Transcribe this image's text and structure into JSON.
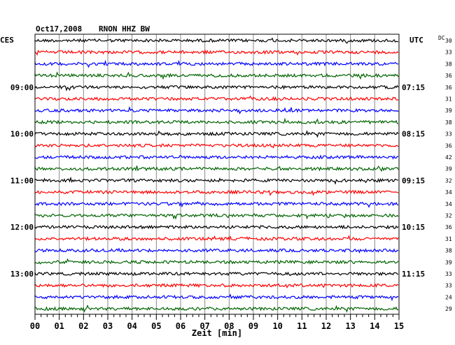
{
  "header": {
    "date": "Oct17,2008",
    "station": "RNON HHZ BW",
    "left_tz": "CES",
    "right_tz": "UTC",
    "dc_label": "DC"
  },
  "colors": {
    "trace_cycle": [
      "#000000",
      "#ff0000",
      "#0000ff",
      "#006400"
    ],
    "grid": "#888888",
    "frame": "#000000"
  },
  "chart_data": {
    "type": "line",
    "title": "Oct17,2008   RNON HHZ BW",
    "xlabel": "Zeit [min]",
    "xlim": [
      0,
      15
    ],
    "x_ticks": [
      "00",
      "01",
      "02",
      "03",
      "04",
      "05",
      "06",
      "07",
      "08",
      "09",
      "10",
      "11",
      "12",
      "13",
      "14",
      "15"
    ],
    "trace_count": 24,
    "left_time_labels": [
      {
        "row": 4,
        "text": "09:00"
      },
      {
        "row": 8,
        "text": "10:00"
      },
      {
        "row": 12,
        "text": "11:00"
      },
      {
        "row": 16,
        "text": "12:00"
      },
      {
        "row": 20,
        "text": "13:00"
      }
    ],
    "right_time_labels": [
      {
        "row": 4,
        "text": "07:15"
      },
      {
        "row": 8,
        "text": "08:15"
      },
      {
        "row": 12,
        "text": "09:15"
      },
      {
        "row": 16,
        "text": "10:15"
      },
      {
        "row": 20,
        "text": "11:15"
      }
    ],
    "dc_offsets": [
      30,
      33,
      38,
      36,
      36,
      31,
      39,
      38,
      33,
      36,
      42,
      39,
      32,
      34,
      34,
      32,
      36,
      31,
      38,
      39,
      33,
      33,
      24,
      29
    ],
    "grid": true
  }
}
